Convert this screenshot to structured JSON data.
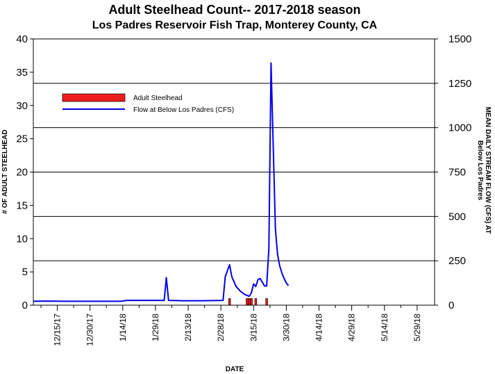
{
  "chart_data": {
    "type": "bar",
    "title": "Adult Steelhead Count-- 2017-2018 season",
    "subtitle": "Los Padres Reservoir Fish Trap, Monterey County, CA",
    "xlabel": "DATE",
    "ylabel_left": "# OF ADULT STEELHEAD",
    "ylabel_right_line1": "MEAN DAILY STREAM FLOW (CFS) AT",
    "ylabel_right_line2": "Below Los Padres",
    "ylim_left": [
      0,
      40
    ],
    "yticks_left": [
      "0",
      "5",
      "10",
      "15",
      "20",
      "25",
      "30",
      "35",
      "40"
    ],
    "ylim_right": [
      0,
      1500
    ],
    "yticks_right": [
      "0",
      "250",
      "500",
      "750",
      "1000",
      "1250",
      "1500"
    ],
    "xlim": [
      "2017-12-04",
      "2018-06-06"
    ],
    "xticks": [
      "12/15/17",
      "12/30/17",
      "1/14/18",
      "1/29/18",
      "2/13/18",
      "2/28/18",
      "3/15/18",
      "3/30/18",
      "4/14/18",
      "4/29/18",
      "5/14/18",
      "5/29/18"
    ],
    "grid": "horizontal lines at right-axis ticks",
    "legend_position": "upper-left",
    "series": [
      {
        "name": "Adult Steelhead",
        "axis": "left",
        "kind": "bar",
        "color": "#ee1c1c",
        "points": [
          {
            "x": "2018-03-04",
            "y": 1
          },
          {
            "x": "2018-03-12",
            "y": 1
          },
          {
            "x": "2018-03-13",
            "y": 1
          },
          {
            "x": "2018-03-14",
            "y": 1
          },
          {
            "x": "2018-03-16",
            "y": 1
          },
          {
            "x": "2018-03-21",
            "y": 1
          }
        ]
      },
      {
        "name": "Flow at Below Los Padres (CFS)",
        "axis": "right",
        "kind": "line",
        "color": "#0000e6",
        "points": [
          {
            "x": "2017-12-04",
            "y": 22
          },
          {
            "x": "2017-12-10",
            "y": 23
          },
          {
            "x": "2017-12-20",
            "y": 22
          },
          {
            "x": "2018-01-05",
            "y": 22
          },
          {
            "x": "2018-01-13",
            "y": 22
          },
          {
            "x": "2018-01-16",
            "y": 27
          },
          {
            "x": "2018-01-25",
            "y": 27
          },
          {
            "x": "2018-02-02",
            "y": 27
          },
          {
            "x": "2018-02-03",
            "y": 155
          },
          {
            "x": "2018-02-04",
            "y": 27
          },
          {
            "x": "2018-02-10",
            "y": 25
          },
          {
            "x": "2018-02-20",
            "y": 25
          },
          {
            "x": "2018-03-01",
            "y": 27
          },
          {
            "x": "2018-03-02",
            "y": 160
          },
          {
            "x": "2018-03-04",
            "y": 228
          },
          {
            "x": "2018-03-05",
            "y": 160
          },
          {
            "x": "2018-03-07",
            "y": 105
          },
          {
            "x": "2018-03-09",
            "y": 78
          },
          {
            "x": "2018-03-11",
            "y": 60
          },
          {
            "x": "2018-03-13",
            "y": 50
          },
          {
            "x": "2018-03-14",
            "y": 70
          },
          {
            "x": "2018-03-15",
            "y": 120
          },
          {
            "x": "2018-03-16",
            "y": 105
          },
          {
            "x": "2018-03-17",
            "y": 145
          },
          {
            "x": "2018-03-18",
            "y": 150
          },
          {
            "x": "2018-03-19",
            "y": 130
          },
          {
            "x": "2018-03-20",
            "y": 108
          },
          {
            "x": "2018-03-21",
            "y": 108
          },
          {
            "x": "2018-03-22",
            "y": 320
          },
          {
            "x": "2018-03-23",
            "y": 1365
          },
          {
            "x": "2018-03-25",
            "y": 430
          },
          {
            "x": "2018-03-26",
            "y": 285
          },
          {
            "x": "2018-03-27",
            "y": 220
          },
          {
            "x": "2018-03-28",
            "y": 180
          },
          {
            "x": "2018-03-29",
            "y": 150
          },
          {
            "x": "2018-03-30",
            "y": 125
          },
          {
            "x": "2018-03-31",
            "y": 110
          }
        ]
      }
    ]
  }
}
